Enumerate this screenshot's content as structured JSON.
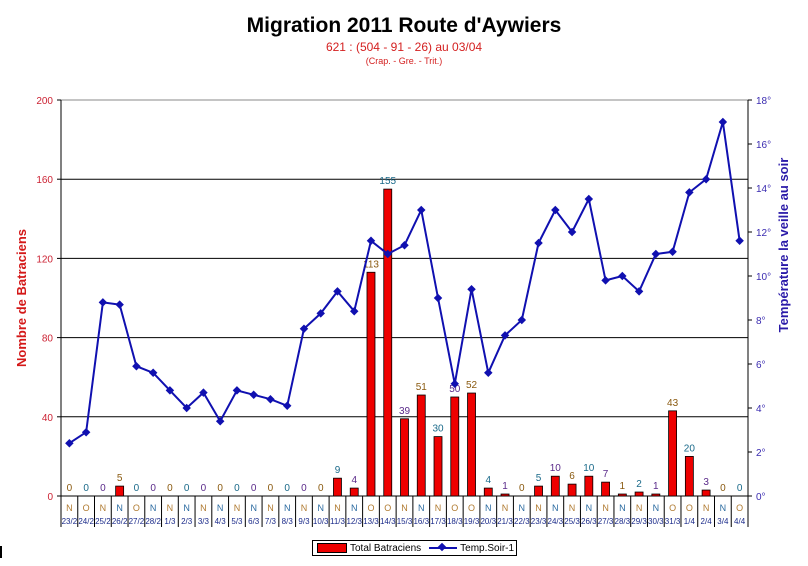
{
  "header": {
    "title": "Migration 2011 Route d'Aywiers",
    "subtitle": "621 :  (504 - 91 - 26) au 03/04",
    "subtitle2": "(Crap. - Gre. - Trit.)"
  },
  "axes": {
    "left_label": "Nombre de Batraciens",
    "right_label": "Température la veille au soir",
    "left_ticks": [
      "0",
      "40",
      "80",
      "120",
      "160",
      "200"
    ],
    "right_ticks": [
      "0°",
      "2°",
      "4°",
      "6°",
      "8°",
      "10°",
      "12°",
      "14°",
      "16°",
      "18°"
    ]
  },
  "legend": {
    "bar_label": "Total Batraciens",
    "line_label": "Temp.Soir-1"
  },
  "colors": {
    "bar": "#ee0000",
    "line": "#1010b0",
    "n_color": "#b07a30",
    "o_color": "#2a6aa0"
  },
  "chart_data": {
    "type": "bar+line",
    "title": "Migration 2011 Route d'Aywiers",
    "subtitle": "621 :  (504 - 91 - 26) au 03/04",
    "subtitle2": "(Crap. - Gre. - Trit.)",
    "categories": [
      "23/2",
      "24/2",
      "25/2",
      "26/2",
      "27/2",
      "28/2",
      "1/3",
      "2/3",
      "3/3",
      "4/3",
      "5/3",
      "6/3",
      "7/3",
      "8/3",
      "9/3",
      "10/3",
      "11/3",
      "12/3",
      "13/3",
      "14/3",
      "15/3",
      "16/3",
      "17/3",
      "18/3",
      "19/3",
      "20/3",
      "21/3",
      "22/3",
      "23/3",
      "24/3",
      "25/3",
      "26/3",
      "27/3",
      "28/3",
      "29/3",
      "30/3",
      "31/3",
      "1/4",
      "2/4",
      "3/4",
      "4/4"
    ],
    "weather_codes": [
      "N",
      "O",
      "N",
      "N",
      "O",
      "N",
      "N",
      "N",
      "N",
      "N",
      "N",
      "N",
      "N",
      "N",
      "N",
      "N",
      "N",
      "N",
      "O",
      "O",
      "N",
      "N",
      "N",
      "O",
      "O",
      "N",
      "N",
      "N",
      "N",
      "N",
      "N",
      "N",
      "N",
      "N",
      "N",
      "N",
      "O",
      "O",
      "N",
      "N",
      "O"
    ],
    "series": [
      {
        "name": "Total Batraciens",
        "type": "bar",
        "axis": "left",
        "values": [
          0,
          0,
          0,
          5,
          0,
          0,
          0,
          0,
          0,
          0,
          0,
          0,
          0,
          0,
          0,
          0,
          9,
          4,
          113,
          155,
          39,
          51,
          30,
          50,
          52,
          4,
          1,
          0,
          5,
          10,
          6,
          10,
          7,
          1,
          2,
          1,
          43,
          20,
          3,
          0,
          0
        ]
      },
      {
        "name": "Temp.Soir-1",
        "type": "line",
        "axis": "right",
        "values": [
          2.4,
          2.9,
          8.8,
          8.7,
          5.9,
          5.6,
          4.8,
          4.0,
          4.7,
          3.4,
          4.8,
          4.6,
          4.4,
          4.1,
          7.6,
          8.3,
          9.3,
          8.4,
          11.6,
          11.0,
          11.4,
          13.0,
          9.0,
          5.1,
          9.4,
          5.6,
          7.3,
          8.0,
          11.5,
          13.0,
          12.0,
          13.5,
          9.8,
          10.0,
          9.3,
          11.0,
          11.1,
          13.8,
          14.4,
          17.0,
          11.6
        ]
      }
    ],
    "xlabel": "",
    "ylabel": "Nombre de Batraciens",
    "ylabel_right": "Température la veille au soir",
    "ylim": [
      0,
      200
    ],
    "ylim_right": [
      0,
      18
    ],
    "yticks": [
      0,
      40,
      80,
      120,
      160,
      200
    ],
    "yticks_right": [
      0,
      2,
      4,
      6,
      8,
      10,
      12,
      14,
      16,
      18
    ],
    "grid": "horizontal at 40, 80, 120, 160",
    "legend_position": "bottom"
  }
}
